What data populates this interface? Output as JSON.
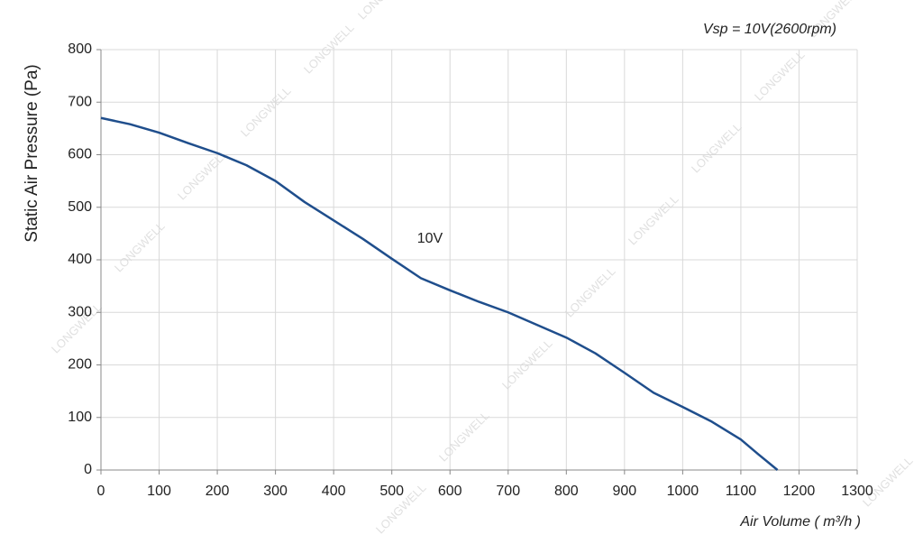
{
  "chart_data": {
    "type": "line",
    "annotation": "Vsp = 10V(2600rpm)",
    "watermark": "LONGWELL",
    "x_label": "Air Volume ( m³/h )",
    "y_label": "Static Air Pressure  (Pa)",
    "x": [
      0,
      50,
      100,
      150,
      200,
      250,
      300,
      350,
      400,
      450,
      500,
      550,
      600,
      650,
      700,
      750,
      800,
      850,
      900,
      950,
      1000,
      1050,
      1100,
      1130,
      1163
    ],
    "series": [
      {
        "name": "10V",
        "color": "#1f4e8c",
        "values": [
          670,
          658,
          642,
          622,
          603,
          580,
          550,
          510,
          475,
          440,
          402,
          365,
          342,
          320,
          300,
          276,
          252,
          222,
          185,
          147,
          120,
          92,
          58,
          30,
          0
        ]
      }
    ],
    "xlim": [
      0,
      1300
    ],
    "xticks": [
      0,
      100,
      200,
      300,
      400,
      500,
      600,
      700,
      800,
      900,
      1000,
      1100,
      1200,
      1300
    ],
    "ylim": [
      0,
      800
    ],
    "yticks": [
      0,
      100,
      200,
      300,
      400,
      500,
      600,
      700,
      800
    ],
    "grid": true
  }
}
